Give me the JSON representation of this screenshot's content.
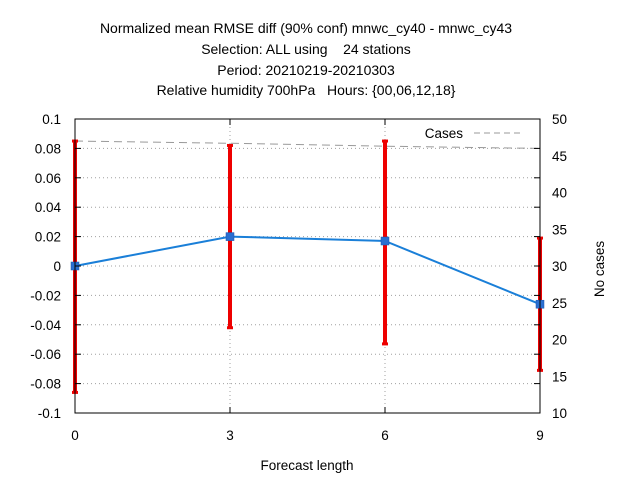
{
  "chart_data": {
    "type": "line",
    "title_lines": [
      "Normalized mean RMSE diff (90% conf) mnwc_cy40 - mnwc_cy43",
      "Selection: ALL using    24 stations",
      "Period: 20210219-20210303",
      "Relative humidity 700hPa   Hours: {00,06,12,18}"
    ],
    "xlabel": "Forecast length",
    "ylabel": "",
    "y2label": "No cases",
    "xlim": [
      0,
      9
    ],
    "ylim": [
      -0.1,
      0.1
    ],
    "y2lim": [
      10,
      50
    ],
    "x_ticks": [
      0,
      3,
      6,
      9
    ],
    "y_ticks": [
      "-0.1",
      "-0.08",
      "-0.06",
      "-0.04",
      "-0.02",
      "0",
      "0.02",
      "0.04",
      "0.06",
      "0.08",
      "0.1"
    ],
    "y2_ticks": [
      "10",
      "15",
      "20",
      "25",
      "30",
      "35",
      "40",
      "45",
      "50"
    ],
    "grid": true,
    "legend_position": "top-right",
    "series": [
      {
        "name": "",
        "color": "#1a7fd8",
        "x": [
          0,
          3,
          6,
          9
        ],
        "y": [
          0.0,
          0.02,
          0.017,
          -0.026
        ],
        "err_low": [
          -0.086,
          -0.042,
          -0.053,
          -0.071
        ],
        "err_high": [
          0.085,
          0.082,
          0.085,
          0.019
        ],
        "err_color": "#ee0000"
      },
      {
        "name": "Cases",
        "axis": "y2",
        "color": "#999999",
        "style": "dashed",
        "x": [
          0,
          3,
          6,
          9
        ],
        "y": [
          47,
          46.7,
          46.3,
          46
        ]
      }
    ]
  }
}
